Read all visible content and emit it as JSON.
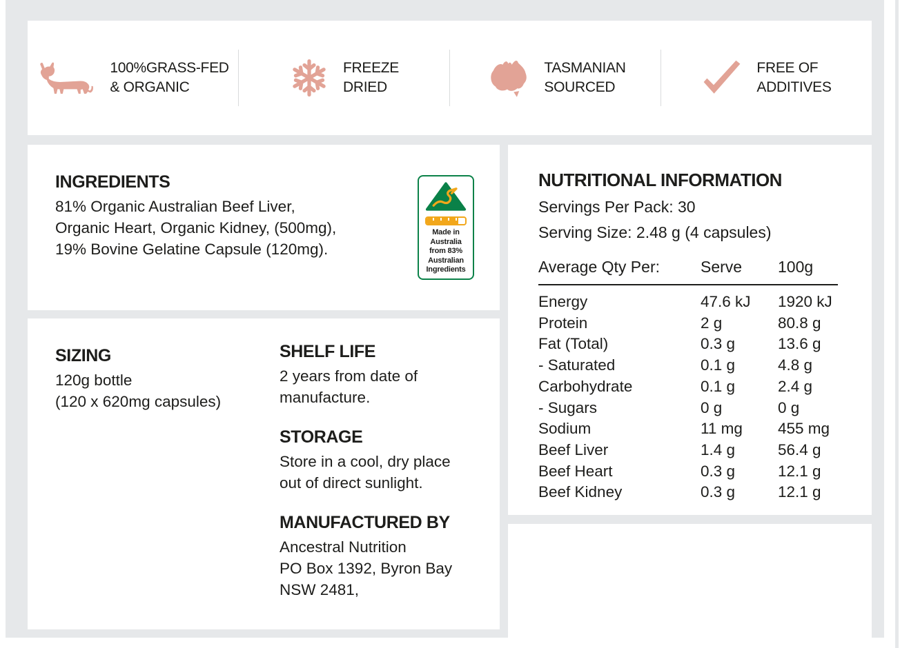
{
  "badges": [
    {
      "icon": "cow-icon",
      "label_line1": "100%GRASS-FED",
      "label_line2": "& ORGANIC"
    },
    {
      "icon": "snowflake-icon",
      "label_line1": "FREEZE",
      "label_line2": "DRIED"
    },
    {
      "icon": "australia-map-icon",
      "label_line1": "TASMANIAN",
      "label_line2": "SOURCED"
    },
    {
      "icon": "checkmark-icon",
      "label_line1": "FREE OF",
      "label_line2": "ADDITIVES"
    }
  ],
  "ingredients": {
    "heading": "INGREDIENTS",
    "lines": [
      "81% Organic Australian Beef Liver,",
      "Organic Heart, Organic Kidney, (500mg),",
      "19% Bovine Gelatine Capsule (120mg)."
    ]
  },
  "made_in_australia": {
    "lines": [
      "Made in",
      "Australia",
      "from 83%",
      "Australian",
      "Ingredients"
    ],
    "bar_fill_percent": 83,
    "green": "#0a8148",
    "gold": "#f2a71b"
  },
  "nutrition": {
    "heading": "NUTRITIONAL INFORMATION",
    "servings_per_pack": "Servings Per Pack: 30",
    "serving_size": "Serving Size: 2.48 g (4 capsules)",
    "table": {
      "header": [
        "Average Qty Per:",
        "Serve",
        "100g"
      ],
      "rows": [
        [
          "Energy",
          "47.6 kJ",
          "1920 kJ"
        ],
        [
          "Protein",
          "2 g",
          "80.8 g"
        ],
        [
          "Fat (Total)",
          "0.3 g",
          "13.6 g"
        ],
        [
          "- Saturated",
          "0.1 g",
          "4.8 g"
        ],
        [
          "Carbohydrate",
          "0.1 g",
          "2.4 g"
        ],
        [
          "- Sugars",
          "0 g",
          "0 g"
        ],
        [
          "Sodium",
          "11 mg",
          "455 mg"
        ],
        [
          "Beef Liver",
          "1.4 g",
          "56.4 g"
        ],
        [
          "Beef Heart",
          "0.3 g",
          "12.1 g"
        ],
        [
          "Beef Kidney",
          "0.3 g",
          "12.1 g"
        ]
      ]
    }
  },
  "sizing": {
    "heading": "SIZING",
    "lines": [
      "120g bottle",
      "(120 x 620mg capsules)"
    ]
  },
  "shelf_life": {
    "heading": "SHELF LIFE",
    "lines": [
      "2 years from date of",
      "manufacture."
    ]
  },
  "storage": {
    "heading": "STORAGE",
    "lines": [
      "Store in a cool, dry place",
      "out of direct sunlight."
    ]
  },
  "manufactured_by": {
    "heading": "MANUFACTURED BY",
    "lines": [
      "Ancestral Nutrition",
      "PO Box 1392, Byron Bay",
      "NSW 2481,"
    ]
  },
  "colors": {
    "accent_salmon": "#e2a396",
    "background_gray": "#e6e8ea",
    "text": "#1d1d1b"
  }
}
